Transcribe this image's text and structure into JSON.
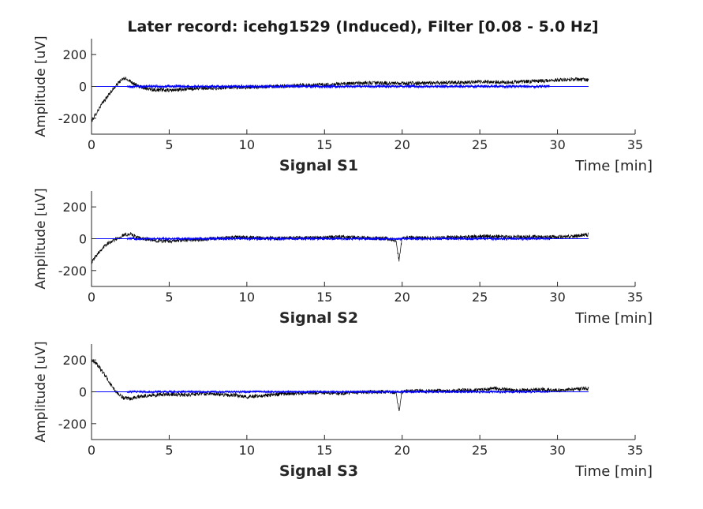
{
  "figure": {
    "title": "Later record: icehg1529 (Induced), Filter [0.08 - 5.0 Hz]"
  },
  "chart_data": [
    {
      "type": "line",
      "subtitle": "Signal S1",
      "xlabel": "Time [min]",
      "ylabel": "Amplitude [uV]",
      "xlim": [
        0,
        35
      ],
      "ylim": [
        -300,
        300
      ],
      "xticks": [
        0,
        5,
        10,
        15,
        20,
        25,
        30,
        35
      ],
      "yticks": [
        -200,
        0,
        200
      ],
      "grid": false,
      "x_end": 32,
      "series": [
        {
          "color": "#000000",
          "x": [
            0,
            0.3,
            0.6,
            0.9,
            1.2,
            1.5,
            1.8,
            2.1,
            2.4,
            3,
            4,
            5,
            6,
            7,
            8,
            9,
            10,
            11,
            12,
            13,
            14,
            15,
            16,
            17,
            18,
            19,
            20,
            21,
            22,
            23,
            24,
            25,
            26,
            27,
            28,
            29,
            30,
            31,
            32
          ],
          "values": [
            -220,
            -170,
            -120,
            -80,
            -40,
            -5,
            30,
            50,
            40,
            0,
            -20,
            -25,
            -18,
            -10,
            -12,
            -5,
            -5,
            -3,
            0,
            5,
            8,
            10,
            15,
            20,
            22,
            20,
            18,
            20,
            22,
            25,
            25,
            30,
            28,
            25,
            30,
            35,
            40,
            45,
            40
          ],
          "noise": 12
        },
        {
          "color": "#0000ff",
          "x": [
            2.3,
            29.5
          ],
          "values": [
            0,
            0
          ],
          "noise": 10
        }
      ]
    },
    {
      "type": "line",
      "subtitle": "Signal S2",
      "xlabel": "Time [min]",
      "ylabel": "Amplitude [uV]",
      "xlim": [
        0,
        35
      ],
      "ylim": [
        -300,
        300
      ],
      "xticks": [
        0,
        5,
        10,
        15,
        20,
        25,
        30,
        35
      ],
      "yticks": [
        -200,
        0,
        200
      ],
      "grid": false,
      "x_end": 32,
      "series": [
        {
          "color": "#000000",
          "x": [
            0,
            0.4,
            0.8,
            1.2,
            1.6,
            2,
            2.5,
            3,
            4,
            5,
            6,
            7,
            8,
            9,
            10,
            11,
            12,
            13,
            14,
            15,
            16,
            17,
            18,
            19,
            19.6,
            19.8,
            20,
            21,
            22,
            23,
            24,
            25,
            26,
            27,
            28,
            29,
            30,
            31,
            32
          ],
          "values": [
            -150,
            -90,
            -50,
            -20,
            0,
            20,
            30,
            5,
            -10,
            -15,
            -10,
            -5,
            0,
            10,
            8,
            5,
            3,
            5,
            5,
            8,
            10,
            8,
            5,
            0,
            -10,
            -140,
            10,
            5,
            5,
            8,
            10,
            15,
            15,
            10,
            12,
            10,
            12,
            15,
            25
          ],
          "noise": 12
        },
        {
          "color": "#0000ff",
          "x": [
            2.3,
            29.5
          ],
          "values": [
            0,
            0
          ],
          "noise": 9
        }
      ]
    },
    {
      "type": "line",
      "subtitle": "Signal S3",
      "xlabel": "Time [min]",
      "ylabel": "Amplitude [uV]",
      "xlim": [
        0,
        35
      ],
      "ylim": [
        -300,
        300
      ],
      "xticks": [
        0,
        5,
        10,
        15,
        20,
        25,
        30,
        35
      ],
      "yticks": [
        -200,
        0,
        200
      ],
      "grid": false,
      "x_end": 32,
      "series": [
        {
          "color": "#000000",
          "x": [
            0,
            0.3,
            0.6,
            0.9,
            1.2,
            1.5,
            1.8,
            2.1,
            2.5,
            3,
            4,
            5,
            6,
            7,
            8,
            9,
            10,
            11,
            12,
            13,
            14,
            15,
            16,
            17,
            18,
            19,
            19.6,
            19.8,
            20,
            21,
            22,
            23,
            24,
            25,
            26,
            27,
            28,
            29,
            30,
            31,
            32
          ],
          "values": [
            200,
            180,
            140,
            100,
            50,
            10,
            -20,
            -40,
            -45,
            -30,
            -20,
            -15,
            -20,
            -10,
            -15,
            -20,
            -30,
            -25,
            -15,
            -10,
            -5,
            -5,
            -10,
            -5,
            0,
            0,
            -5,
            -120,
            5,
            5,
            8,
            5,
            10,
            10,
            20,
            10,
            10,
            15,
            10,
            15,
            20
          ],
          "noise": 12
        },
        {
          "color": "#0000ff",
          "x": [
            2.3,
            29.5
          ],
          "values": [
            0,
            0
          ],
          "noise": 8
        }
      ]
    }
  ]
}
